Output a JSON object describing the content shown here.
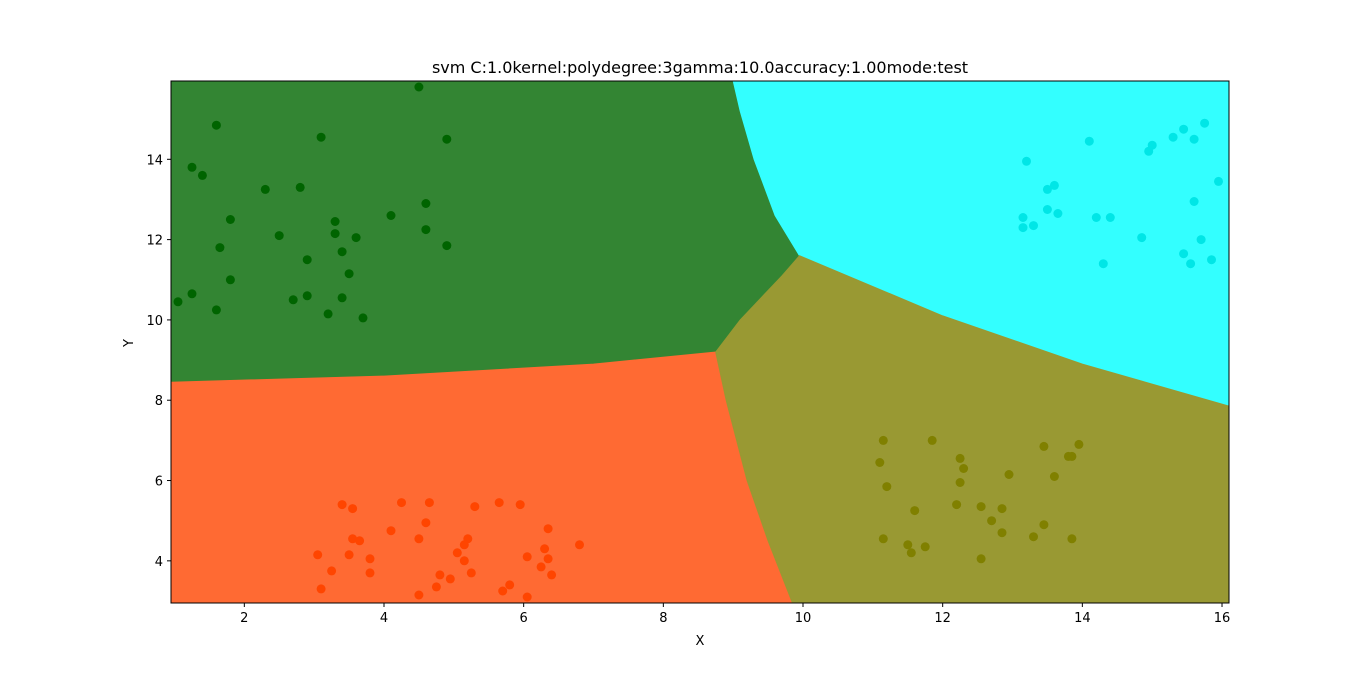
{
  "chart_data": {
    "type": "scatter",
    "title": "svm C:1.0kernel:polydegree:3gamma:10.0accuracy:1.00mode:test",
    "xlabel": "X",
    "ylabel": "Y",
    "xlim": [
      0.95,
      16.1
    ],
    "ylim": [
      2.95,
      15.95
    ],
    "x_ticks": [
      2,
      4,
      6,
      8,
      10,
      12,
      14,
      16
    ],
    "y_ticks": [
      4,
      6,
      8,
      10,
      12,
      14
    ],
    "grid": false,
    "regions": [
      {
        "class": "green-region",
        "color": "#338533",
        "polygon": [
          [
            0.95,
            15.95
          ],
          [
            9.0,
            15.95
          ],
          [
            9.1,
            15.2
          ],
          [
            9.3,
            14.0
          ],
          [
            9.6,
            12.6
          ],
          [
            9.95,
            11.6
          ],
          [
            9.7,
            11.1
          ],
          [
            9.1,
            10.0
          ],
          [
            8.75,
            9.2
          ],
          [
            7.0,
            8.9
          ],
          [
            4.0,
            8.6
          ],
          [
            0.95,
            8.45
          ]
        ]
      },
      {
        "class": "cyan-region",
        "color": "#33ffff",
        "polygon": [
          [
            9.0,
            15.95
          ],
          [
            16.1,
            15.95
          ],
          [
            16.1,
            7.85
          ],
          [
            14.0,
            8.9
          ],
          [
            12.0,
            10.1
          ],
          [
            9.95,
            11.6
          ],
          [
            9.6,
            12.6
          ],
          [
            9.3,
            14.0
          ],
          [
            9.1,
            15.2
          ]
        ]
      },
      {
        "class": "orange-region",
        "color": "#ff6a33",
        "polygon": [
          [
            0.95,
            8.45
          ],
          [
            4.0,
            8.6
          ],
          [
            7.0,
            8.9
          ],
          [
            8.75,
            9.2
          ],
          [
            8.9,
            8.0
          ],
          [
            9.2,
            6.0
          ],
          [
            9.5,
            4.5
          ],
          [
            9.85,
            2.95
          ],
          [
            0.95,
            2.95
          ]
        ]
      },
      {
        "class": "olive-region",
        "color": "#999933",
        "polygon": [
          [
            8.75,
            9.2
          ],
          [
            9.1,
            10.0
          ],
          [
            9.7,
            11.1
          ],
          [
            9.95,
            11.6
          ],
          [
            12.0,
            10.1
          ],
          [
            14.0,
            8.9
          ],
          [
            16.1,
            7.85
          ],
          [
            16.1,
            2.95
          ],
          [
            9.85,
            2.95
          ],
          [
            9.5,
            4.5
          ],
          [
            9.2,
            6.0
          ],
          [
            8.9,
            8.0
          ]
        ]
      }
    ],
    "series": [
      {
        "color": "#006400",
        "points": [
          [
            1.6,
            14.85
          ],
          [
            1.25,
            13.8
          ],
          [
            1.4,
            13.6
          ],
          [
            4.5,
            15.8
          ],
          [
            3.1,
            14.55
          ],
          [
            4.9,
            14.5
          ],
          [
            2.3,
            13.25
          ],
          [
            2.8,
            13.3
          ],
          [
            1.8,
            12.5
          ],
          [
            4.1,
            12.6
          ],
          [
            4.6,
            12.9
          ],
          [
            3.3,
            12.45
          ],
          [
            2.5,
            12.1
          ],
          [
            3.3,
            12.15
          ],
          [
            3.6,
            12.05
          ],
          [
            4.6,
            12.25
          ],
          [
            4.9,
            11.85
          ],
          [
            1.65,
            11.8
          ],
          [
            2.9,
            11.5
          ],
          [
            3.4,
            11.7
          ],
          [
            3.5,
            11.15
          ],
          [
            1.8,
            11.0
          ],
          [
            1.25,
            10.65
          ],
          [
            1.05,
            10.45
          ],
          [
            2.7,
            10.5
          ],
          [
            2.9,
            10.6
          ],
          [
            3.4,
            10.55
          ],
          [
            1.6,
            10.25
          ],
          [
            3.2,
            10.15
          ],
          [
            3.7,
            10.05
          ]
        ]
      },
      {
        "color": "#00e6e6",
        "points": [
          [
            13.2,
            13.95
          ],
          [
            14.1,
            14.45
          ],
          [
            15.0,
            14.35
          ],
          [
            14.95,
            14.2
          ],
          [
            15.3,
            14.55
          ],
          [
            15.45,
            14.75
          ],
          [
            15.6,
            14.5
          ],
          [
            15.75,
            14.9
          ],
          [
            15.95,
            13.45
          ],
          [
            13.5,
            13.25
          ],
          [
            13.6,
            13.35
          ],
          [
            13.5,
            12.75
          ],
          [
            13.65,
            12.65
          ],
          [
            13.15,
            12.55
          ],
          [
            14.2,
            12.55
          ],
          [
            14.4,
            12.55
          ],
          [
            15.6,
            12.95
          ],
          [
            13.15,
            12.3
          ],
          [
            13.3,
            12.35
          ],
          [
            14.85,
            12.05
          ],
          [
            15.7,
            12.0
          ],
          [
            15.45,
            11.65
          ],
          [
            15.85,
            11.5
          ],
          [
            15.55,
            11.4
          ],
          [
            14.3,
            11.4
          ]
        ]
      },
      {
        "color": "#808000",
        "points": [
          [
            11.15,
            7.0
          ],
          [
            11.85,
            7.0
          ],
          [
            13.45,
            6.85
          ],
          [
            13.95,
            6.9
          ],
          [
            12.25,
            6.55
          ],
          [
            13.8,
            6.6
          ],
          [
            13.85,
            6.6
          ],
          [
            11.1,
            6.45
          ],
          [
            12.3,
            6.3
          ],
          [
            12.95,
            6.15
          ],
          [
            13.6,
            6.1
          ],
          [
            12.25,
            5.95
          ],
          [
            11.2,
            5.85
          ],
          [
            12.2,
            5.4
          ],
          [
            12.55,
            5.35
          ],
          [
            12.85,
            5.3
          ],
          [
            11.6,
            5.25
          ],
          [
            12.7,
            5.0
          ],
          [
            13.45,
            4.9
          ],
          [
            12.85,
            4.7
          ],
          [
            11.15,
            4.55
          ],
          [
            13.3,
            4.6
          ],
          [
            13.85,
            4.55
          ],
          [
            11.5,
            4.4
          ],
          [
            11.75,
            4.35
          ],
          [
            11.55,
            4.2
          ],
          [
            12.55,
            4.05
          ]
        ]
      },
      {
        "color": "#ff4500",
        "points": [
          [
            4.25,
            5.45
          ],
          [
            4.65,
            5.45
          ],
          [
            5.65,
            5.45
          ],
          [
            5.95,
            5.4
          ],
          [
            3.4,
            5.4
          ],
          [
            3.55,
            5.3
          ],
          [
            5.3,
            5.35
          ],
          [
            4.6,
            4.95
          ],
          [
            6.35,
            4.8
          ],
          [
            4.1,
            4.75
          ],
          [
            3.55,
            4.55
          ],
          [
            3.65,
            4.5
          ],
          [
            4.5,
            4.55
          ],
          [
            5.2,
            4.55
          ],
          [
            5.15,
            4.4
          ],
          [
            6.8,
            4.4
          ],
          [
            6.3,
            4.3
          ],
          [
            3.05,
            4.15
          ],
          [
            3.5,
            4.15
          ],
          [
            5.05,
            4.2
          ],
          [
            6.05,
            4.1
          ],
          [
            3.8,
            4.05
          ],
          [
            5.15,
            4.0
          ],
          [
            6.35,
            4.05
          ],
          [
            6.25,
            3.85
          ],
          [
            3.25,
            3.75
          ],
          [
            3.8,
            3.7
          ],
          [
            5.25,
            3.7
          ],
          [
            6.4,
            3.65
          ],
          [
            4.8,
            3.65
          ],
          [
            4.95,
            3.55
          ],
          [
            4.75,
            3.35
          ],
          [
            5.8,
            3.4
          ],
          [
            3.1,
            3.3
          ],
          [
            5.7,
            3.25
          ],
          [
            4.5,
            3.15
          ],
          [
            6.05,
            3.1
          ]
        ]
      }
    ]
  }
}
